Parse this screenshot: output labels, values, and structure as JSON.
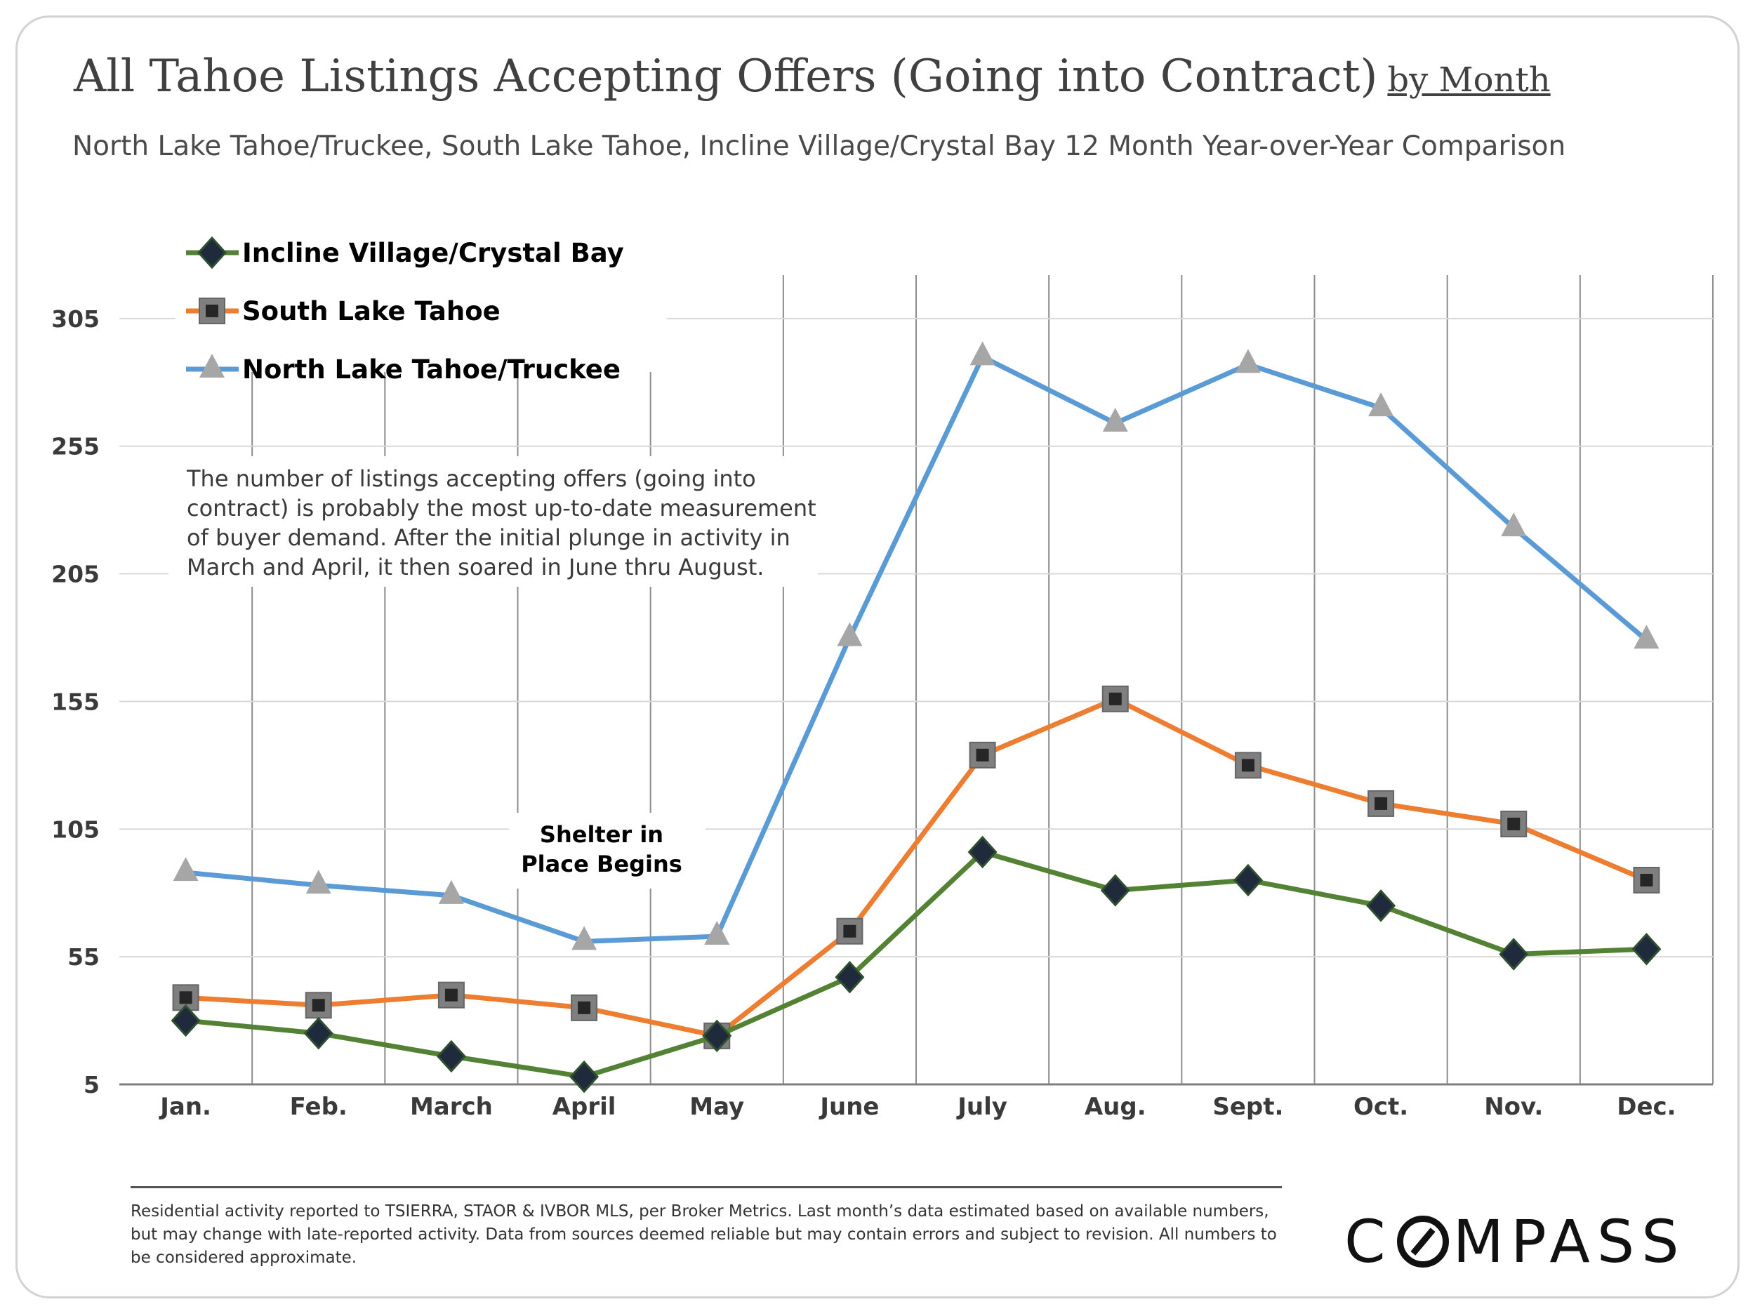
{
  "header": {
    "title": "All Tahoe Listings Accepting Offers (Going into Contract)",
    "title_suffix": "by Month",
    "subtitle": "North Lake Tahoe/Truckee, South Lake Tahoe, Incline Village/Crystal Bay 12 Month Year-over-Year Comparison"
  },
  "chart_data": {
    "type": "line",
    "title": "All Tahoe Listings Accepting Offers (Going into Contract) by Month",
    "xlabel": "",
    "ylabel": "",
    "categories": [
      "Jan.",
      "Feb.",
      "March",
      "April",
      "May",
      "June",
      "July",
      "Aug.",
      "Sept.",
      "Oct.",
      "Nov.",
      "Dec."
    ],
    "ylim": [
      5,
      322
    ],
    "yticks": [
      5,
      55,
      105,
      155,
      205,
      255,
      305
    ],
    "grid": {
      "horizontal": true,
      "vertical": true
    },
    "legend_position": "top-left",
    "series": [
      {
        "name": "Incline Village/Crystal Bay",
        "color": "#548235",
        "marker": "diamond",
        "values": [
          30,
          25,
          16,
          8,
          24,
          47,
          96,
          81,
          85,
          75,
          56,
          58
        ]
      },
      {
        "name": "South Lake Tahoe",
        "color": "#ed7d31",
        "marker": "square",
        "values": [
          39,
          36,
          40,
          35,
          24,
          65,
          134,
          156,
          130,
          115,
          107,
          85
        ]
      },
      {
        "name": "North Lake Tahoe/Truckee",
        "color": "#5b9bd5",
        "marker": "triangle",
        "values": [
          88,
          83,
          79,
          61,
          63,
          180,
          290,
          264,
          287,
          270,
          223,
          179
        ]
      }
    ],
    "annotations": [
      {
        "text_lines": [
          "The number of listings accepting offers (going into",
          "contract) is probably the most up-to-date measurement",
          "of buyer demand. After the initial plunge in activity in",
          "March and April, it then soared in June thru August."
        ]
      },
      {
        "text_lines": [
          "Shelter in",
          "Place Begins"
        ]
      }
    ]
  },
  "footer": {
    "note": "Residential activity reported to TSIERRA, STAOR & IVBOR MLS, per Broker Metrics. Last month’s data estimated based on available numbers, but may change with late-reported activity. Data from sources deemed reliable but may contain errors and subject to revision. All numbers to be considered approximate.",
    "logo_prefix": "C",
    "logo_suffix": "MPASS"
  }
}
